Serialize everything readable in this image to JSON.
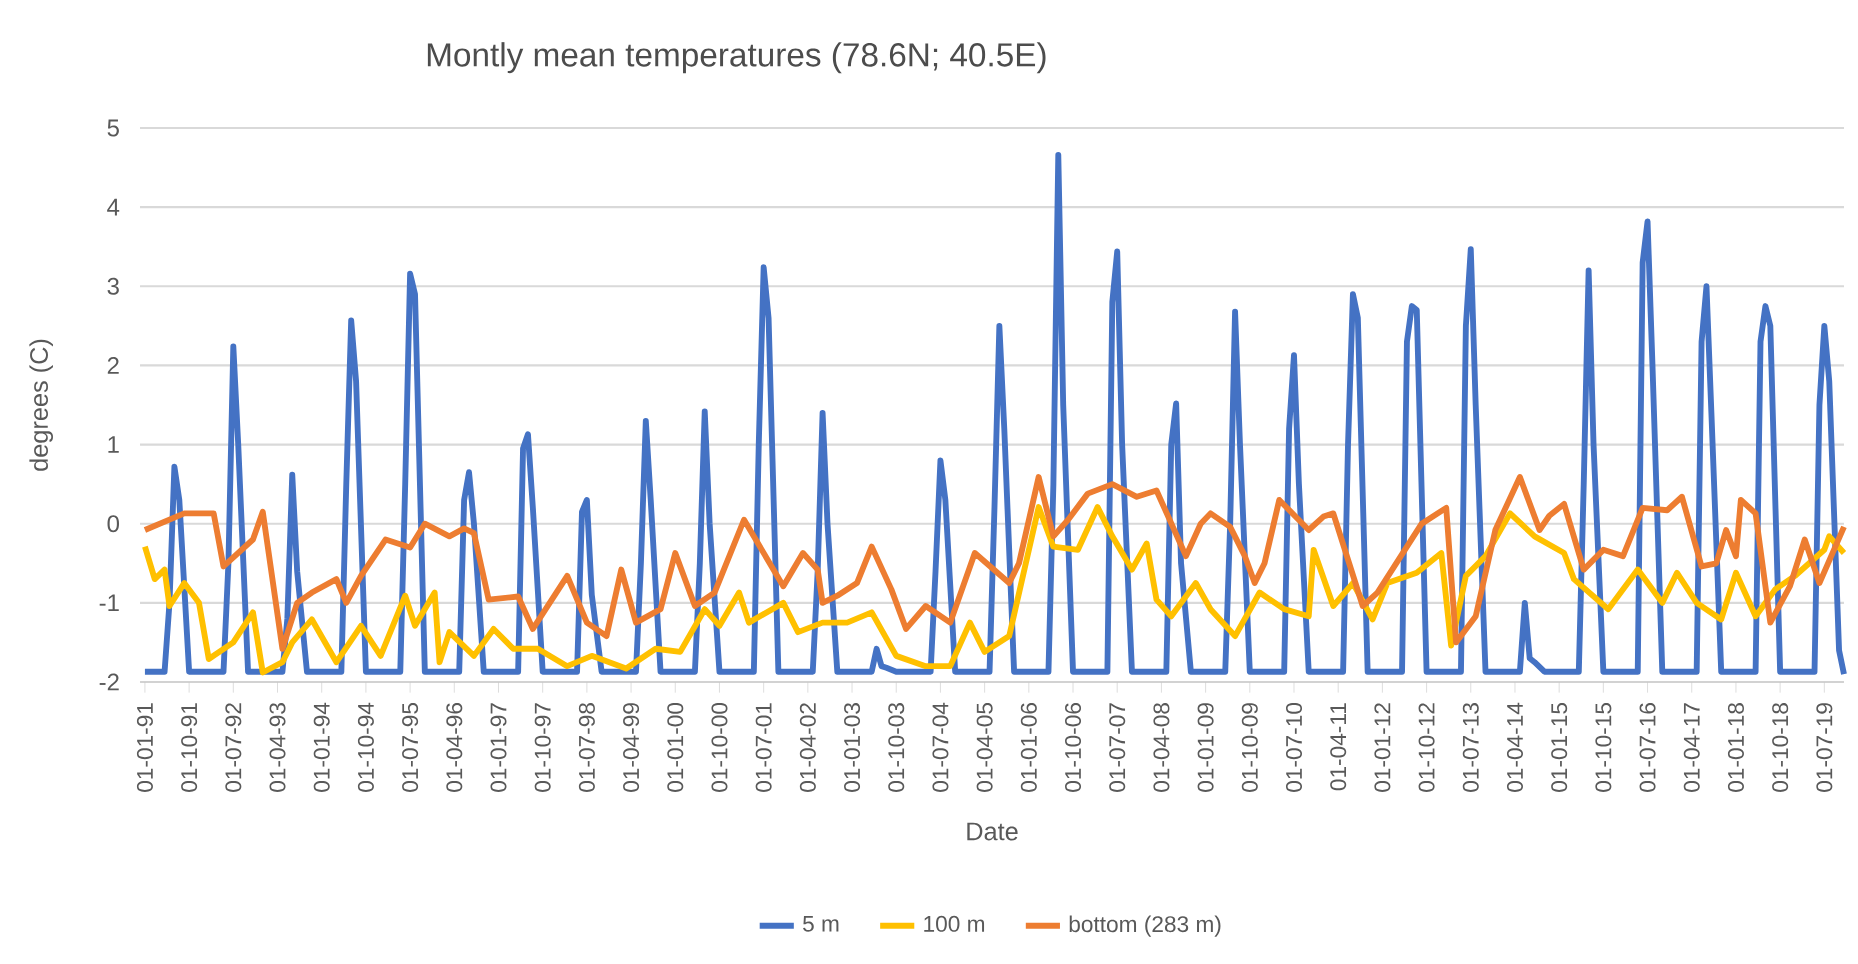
{
  "chart_data": {
    "type": "line",
    "title": "Montly mean temperatures   (78.6N; 40.5E)",
    "xlabel": "Date",
    "ylabel": "degrees (C)",
    "xlim": [
      "1990-12",
      "2019-11"
    ],
    "ylim": [
      -2,
      5
    ],
    "yticks": [
      -2,
      -1,
      0,
      1,
      2,
      3,
      4,
      5
    ],
    "xticks": [
      {
        "value": "1991-01",
        "label": "01-01-91"
      },
      {
        "value": "1991-10",
        "label": "01-10-91"
      },
      {
        "value": "1992-07",
        "label": "01-07-92"
      },
      {
        "value": "1993-04",
        "label": "01-04-93"
      },
      {
        "value": "1994-01",
        "label": "01-01-94"
      },
      {
        "value": "1994-10",
        "label": "01-10-94"
      },
      {
        "value": "1995-07",
        "label": "01-07-95"
      },
      {
        "value": "1996-04",
        "label": "01-04-96"
      },
      {
        "value": "1997-01",
        "label": "01-01-97"
      },
      {
        "value": "1997-10",
        "label": "01-10-97"
      },
      {
        "value": "1998-07",
        "label": "01-07-98"
      },
      {
        "value": "1999-04",
        "label": "01-04-99"
      },
      {
        "value": "2000-01",
        "label": "01-01-00"
      },
      {
        "value": "2000-10",
        "label": "01-10-00"
      },
      {
        "value": "2001-07",
        "label": "01-07-01"
      },
      {
        "value": "2002-04",
        "label": "01-04-02"
      },
      {
        "value": "2003-01",
        "label": "01-01-03"
      },
      {
        "value": "2003-10",
        "label": "01-10-03"
      },
      {
        "value": "2004-07",
        "label": "01-07-04"
      },
      {
        "value": "2005-04",
        "label": "01-04-05"
      },
      {
        "value": "2006-01",
        "label": "01-01-06"
      },
      {
        "value": "2006-10",
        "label": "01-10-06"
      },
      {
        "value": "2007-07",
        "label": "01-07-07"
      },
      {
        "value": "2008-04",
        "label": "01-04-08"
      },
      {
        "value": "2009-01",
        "label": "01-01-09"
      },
      {
        "value": "2009-10",
        "label": "01-10-09"
      },
      {
        "value": "2010-07",
        "label": "01-07-10"
      },
      {
        "value": "2011-04",
        "label": "01-04-11"
      },
      {
        "value": "2012-01",
        "label": "01-01-12"
      },
      {
        "value": "2012-10",
        "label": "01-10-12"
      },
      {
        "value": "2013-07",
        "label": "01-07-13"
      },
      {
        "value": "2014-04",
        "label": "01-04-14"
      },
      {
        "value": "2015-01",
        "label": "01-01-15"
      },
      {
        "value": "2015-10",
        "label": "01-10-15"
      },
      {
        "value": "2016-07",
        "label": "01-07-16"
      },
      {
        "value": "2017-04",
        "label": "01-04-17"
      },
      {
        "value": "2018-01",
        "label": "01-01-18"
      },
      {
        "value": "2018-10",
        "label": "01-10-18"
      },
      {
        "value": "2019-07",
        "label": "01-07-19"
      }
    ],
    "grid": "y",
    "legend": "bottom",
    "series": [
      {
        "name": "5 m",
        "color": "#4472c4",
        "x": [
          "1991-01",
          "1991-05",
          "1991-06",
          "1991-07",
          "1991-08",
          "1991-10",
          "1992-05",
          "1992-06",
          "1992-07",
          "1992-08",
          "1992-10",
          "1993-05",
          "1993-06",
          "1993-07",
          "1993-08",
          "1993-10",
          "1994-05",
          "1994-06",
          "1994-07",
          "1994-08",
          "1994-10",
          "1995-05",
          "1995-06",
          "1995-07",
          "1995-08",
          "1995-10",
          "1996-05",
          "1996-06",
          "1996-07",
          "1996-08",
          "1996-10",
          "1997-05",
          "1997-06",
          "1997-07",
          "1997-08",
          "1997-10",
          "1998-05",
          "1998-06",
          "1998-07",
          "1998-08",
          "1998-10",
          "1999-05",
          "1999-06",
          "1999-07",
          "1999-08",
          "1999-10",
          "2000-05",
          "2000-06",
          "2000-07",
          "2000-08",
          "2000-10",
          "2001-05",
          "2001-06",
          "2001-07",
          "2001-08",
          "2001-10",
          "2002-05",
          "2002-06",
          "2002-07",
          "2002-08",
          "2002-10",
          "2003-05",
          "2003-06",
          "2003-07",
          "2003-08",
          "2003-10",
          "2004-05",
          "2004-06",
          "2004-07",
          "2004-08",
          "2004-10",
          "2005-05",
          "2005-06",
          "2005-07",
          "2005-08",
          "2005-10",
          "2006-05",
          "2006-06",
          "2006-07",
          "2006-08",
          "2006-10",
          "2007-05",
          "2007-06",
          "2007-07",
          "2007-08",
          "2007-10",
          "2008-05",
          "2008-06",
          "2008-07",
          "2008-08",
          "2008-10",
          "2009-05",
          "2009-06",
          "2009-07",
          "2009-08",
          "2009-10",
          "2010-05",
          "2010-06",
          "2010-07",
          "2010-08",
          "2010-10",
          "2011-05",
          "2011-06",
          "2011-07",
          "2011-08",
          "2011-10",
          "2012-05",
          "2012-06",
          "2012-07",
          "2012-08",
          "2012-10",
          "2013-05",
          "2013-06",
          "2013-07",
          "2013-08",
          "2013-10",
          "2014-05",
          "2014-06",
          "2014-07",
          "2014-08",
          "2014-10",
          "2015-05",
          "2015-06",
          "2015-07",
          "2015-08",
          "2015-10",
          "2016-05",
          "2016-06",
          "2016-07",
          "2016-08",
          "2016-10",
          "2017-05",
          "2017-06",
          "2017-07",
          "2017-08",
          "2017-10",
          "2018-05",
          "2018-06",
          "2018-07",
          "2018-08",
          "2018-10",
          "2019-05",
          "2019-06",
          "2019-07",
          "2019-08",
          "2019-10",
          "2019-11"
        ],
        "values": [
          -1.87,
          -1.87,
          -1.0,
          0.72,
          0.3,
          -1.87,
          -1.87,
          -0.5,
          2.24,
          1.0,
          -1.87,
          -1.87,
          -1.2,
          0.62,
          -0.6,
          -1.87,
          -1.87,
          0.5,
          2.57,
          1.8,
          -1.87,
          -1.87,
          0.5,
          3.16,
          2.9,
          -1.87,
          -1.87,
          0.3,
          0.65,
          0.0,
          -1.87,
          -1.87,
          0.95,
          1.13,
          0.2,
          -1.87,
          -1.87,
          0.15,
          0.3,
          -0.9,
          -1.87,
          -1.87,
          -0.5,
          1.3,
          0.3,
          -1.87,
          -1.87,
          -0.5,
          1.42,
          0.0,
          -1.87,
          -1.87,
          1.0,
          3.24,
          2.6,
          -1.87,
          -1.87,
          -0.6,
          1.4,
          0.0,
          -1.87,
          -1.87,
          -1.58,
          -1.8,
          -1.82,
          -1.87,
          -1.87,
          -0.6,
          0.8,
          0.3,
          -1.87,
          -1.87,
          0.2,
          2.5,
          1.2,
          -1.87,
          -1.87,
          0.5,
          4.66,
          1.5,
          -1.87,
          -1.87,
          2.8,
          3.44,
          1.0,
          -1.87,
          -1.87,
          1.0,
          1.52,
          -0.5,
          -1.87,
          -1.87,
          0.0,
          2.68,
          1.0,
          -1.87,
          -1.87,
          1.2,
          2.13,
          0.5,
          -1.87,
          -1.87,
          1.0,
          2.9,
          2.6,
          -1.87,
          -1.87,
          2.3,
          2.75,
          2.7,
          -1.87,
          -1.87,
          2.5,
          3.47,
          1.5,
          -1.87,
          -1.87,
          -1.0,
          -1.7,
          -1.75,
          -1.87,
          -1.87,
          0.5,
          3.2,
          1.0,
          -1.87,
          -1.87,
          3.3,
          3.82,
          2.0,
          -1.87,
          -1.87,
          2.3,
          3.0,
          1.4,
          -1.87,
          -1.87,
          2.3,
          2.75,
          2.5,
          -1.87,
          -1.87,
          1.5,
          2.5,
          1.8,
          -1.6,
          -1.9
        ]
      },
      {
        "name": "100 m",
        "color": "#ffc000",
        "x": [
          "1991-01",
          "1991-03",
          "1991-05",
          "1991-06",
          "1991-09",
          "1991-12",
          "1992-02",
          "1992-07",
          "1992-11",
          "1993-01",
          "1993-05",
          "1993-07",
          "1993-11",
          "1994-04",
          "1994-09",
          "1995-01",
          "1995-06",
          "1995-08",
          "1995-12",
          "1996-01",
          "1996-03",
          "1996-08",
          "1996-12",
          "1997-04",
          "1997-09",
          "1998-03",
          "1998-08",
          "1999-03",
          "1999-09",
          "2000-02",
          "2000-07",
          "2000-10",
          "2001-02",
          "2001-04",
          "2001-11",
          "2002-02",
          "2002-07",
          "2002-12",
          "2003-05",
          "2003-10",
          "2004-04",
          "2004-09",
          "2005-01",
          "2005-04",
          "2005-09",
          "2006-03",
          "2006-06",
          "2006-11",
          "2007-03",
          "2007-06",
          "2007-10",
          "2008-01",
          "2008-03",
          "2008-06",
          "2008-11",
          "2009-02",
          "2009-07",
          "2009-12",
          "2010-05",
          "2010-10",
          "2010-11",
          "2011-03",
          "2011-07",
          "2011-11",
          "2012-02",
          "2012-08",
          "2013-01",
          "2013-03",
          "2013-06",
          "2013-10",
          "2014-03",
          "2014-08",
          "2015-02",
          "2015-04",
          "2015-11",
          "2016-05",
          "2016-10",
          "2017-01",
          "2017-05",
          "2017-10",
          "2018-01",
          "2018-05",
          "2018-09",
          "2019-01",
          "2019-07",
          "2019-08",
          "2019-11"
        ],
        "values": [
          -0.29,
          -0.7,
          -0.58,
          -1.04,
          -0.75,
          -1.0,
          -1.71,
          -1.5,
          -1.12,
          -1.88,
          -1.75,
          -1.5,
          -1.21,
          -1.75,
          -1.29,
          -1.67,
          -0.91,
          -1.29,
          -0.87,
          -1.75,
          -1.37,
          -1.67,
          -1.33,
          -1.58,
          -1.58,
          -1.8,
          -1.67,
          -1.83,
          -1.58,
          -1.62,
          -1.08,
          -1.29,
          -0.87,
          -1.25,
          -1.0,
          -1.37,
          -1.25,
          -1.25,
          -1.12,
          -1.67,
          -1.8,
          -1.8,
          -1.25,
          -1.62,
          -1.42,
          0.21,
          -0.29,
          -0.33,
          0.21,
          -0.16,
          -0.58,
          -0.25,
          -0.96,
          -1.17,
          -0.75,
          -1.08,
          -1.42,
          -0.87,
          -1.08,
          -1.17,
          -0.33,
          -1.04,
          -0.75,
          -1.21,
          -0.75,
          -0.62,
          -0.37,
          -1.54,
          -0.66,
          -0.41,
          0.13,
          -0.16,
          -0.37,
          -0.7,
          -1.08,
          -0.58,
          -1.0,
          -0.62,
          -1.0,
          -1.21,
          -0.62,
          -1.17,
          -0.83,
          -0.66,
          -0.33,
          -0.16,
          -0.37
        ]
      },
      {
        "name": "bottom (283 m)",
        "color": "#ed7d31",
        "x": [
          "1991-01",
          "1991-09",
          "1992-03",
          "1992-05",
          "1992-11",
          "1993-01",
          "1993-05",
          "1993-08",
          "1993-11",
          "1994-04",
          "1994-06",
          "1994-09",
          "1995-02",
          "1995-07",
          "1995-10",
          "1996-03",
          "1996-06",
          "1996-08",
          "1996-11",
          "1997-05",
          "1997-08",
          "1998-03",
          "1998-07",
          "1998-11",
          "1999-02",
          "1999-05",
          "1999-10",
          "2000-01",
          "2000-05",
          "2000-09",
          "2001-03",
          "2001-11",
          "2002-03",
          "2002-06",
          "2002-07",
          "2002-10",
          "2003-02",
          "2003-05",
          "2003-09",
          "2003-12",
          "2004-04",
          "2004-09",
          "2005-02",
          "2005-09",
          "2005-11",
          "2006-03",
          "2006-06",
          "2006-09",
          "2007-01",
          "2007-06",
          "2007-11",
          "2008-03",
          "2008-09",
          "2008-12",
          "2009-02",
          "2009-06",
          "2009-09",
          "2009-11",
          "2010-01",
          "2010-04",
          "2010-10",
          "2011-01",
          "2011-03",
          "2011-09",
          "2011-12",
          "2012-09",
          "2013-02",
          "2013-04",
          "2013-08",
          "2013-12",
          "2014-05",
          "2014-09",
          "2014-11",
          "2015-02",
          "2015-06",
          "2015-10",
          "2016-02",
          "2016-06",
          "2016-11",
          "2017-02",
          "2017-06",
          "2017-09",
          "2017-11",
          "2018-01",
          "2018-02",
          "2018-05",
          "2018-08",
          "2018-12",
          "2019-03",
          "2019-06",
          "2019-11"
        ],
        "values": [
          -0.08,
          0.13,
          0.13,
          -0.54,
          -0.2,
          0.15,
          -1.58,
          -1.0,
          -0.87,
          -0.7,
          -1.0,
          -0.66,
          -0.2,
          -0.3,
          0.0,
          -0.16,
          -0.06,
          -0.12,
          -0.96,
          -0.92,
          -1.33,
          -0.66,
          -1.25,
          -1.42,
          -0.58,
          -1.25,
          -1.08,
          -0.37,
          -1.04,
          -0.87,
          0.05,
          -0.79,
          -0.37,
          -0.58,
          -1.0,
          -0.91,
          -0.75,
          -0.29,
          -0.83,
          -1.33,
          -1.04,
          -1.25,
          -0.37,
          -0.75,
          -0.5,
          0.59,
          -0.16,
          0.05,
          0.38,
          0.5,
          0.34,
          0.42,
          -0.41,
          0.0,
          0.13,
          -0.04,
          -0.41,
          -0.75,
          -0.5,
          0.3,
          -0.08,
          0.09,
          0.13,
          -1.04,
          -0.87,
          0.0,
          0.2,
          -1.5,
          -1.17,
          -0.08,
          0.59,
          -0.08,
          0.1,
          0.25,
          -0.58,
          -0.33,
          -0.41,
          0.2,
          0.17,
          0.34,
          -0.54,
          -0.5,
          -0.08,
          -0.41,
          0.3,
          0.13,
          -1.25,
          -0.79,
          -0.2,
          -0.75,
          -0.04
        ]
      }
    ]
  }
}
